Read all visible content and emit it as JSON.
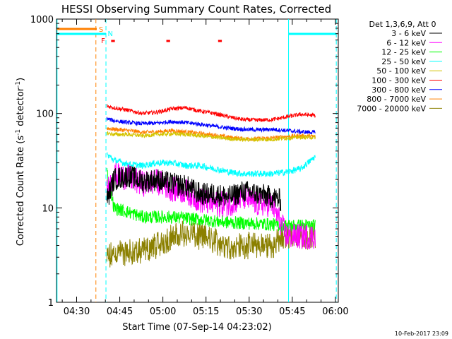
{
  "chart_data": {
    "type": "line",
    "title": "HESSI Observing Summary Count Rates, Corrected",
    "xlabel": "Start Time (07-Sep-14 04:23:02)",
    "ylabel_main": "Corrected Count Rate (s",
    "ylabel_sup1": "-1",
    "ylabel_mid": " detector",
    "ylabel_sup2": "-1",
    "ylabel_end": ")",
    "yscale": "log",
    "ylim": [
      1,
      1000
    ],
    "xlim_minutes": [
      0,
      98
    ],
    "x_ticks": [
      {
        "label": "04:30",
        "min": 7
      },
      {
        "label": "04:45",
        "min": 22
      },
      {
        "label": "05:00",
        "min": 37
      },
      {
        "label": "05:15",
        "min": 52
      },
      {
        "label": "05:30",
        "min": 67
      },
      {
        "label": "05:45",
        "min": 82
      },
      {
        "label": "06:00",
        "min": 97
      }
    ],
    "y_ticks": [
      {
        "label": "1",
        "v": 1
      },
      {
        "label": "10",
        "v": 10
      },
      {
        "label": "100",
        "v": 100
      },
      {
        "label": "1000",
        "v": 1000
      }
    ],
    "legend_header": "Det 1,3,6,9, Att 0",
    "series": [
      {
        "name": "3 - 6 keV",
        "color": "#000000",
        "x": [
          17.5,
          20,
          25,
          30,
          35,
          40,
          45,
          50,
          55,
          60,
          65,
          70,
          75,
          78
        ],
        "y": [
          12,
          20,
          22,
          19,
          20,
          18,
          17,
          14,
          14,
          13,
          15,
          14,
          13,
          12
        ]
      },
      {
        "name": "6 - 12 keV",
        "color": "#ff00ff",
        "x": [
          17.5,
          20,
          25,
          30,
          35,
          40,
          45,
          50,
          55,
          60,
          65,
          70,
          75,
          80,
          90
        ],
        "y": [
          15,
          22,
          21,
          18,
          19,
          16,
          15,
          12,
          11,
          11,
          13,
          11,
          11,
          5,
          5
        ]
      },
      {
        "name": "12 - 25 keV",
        "color": "#00ff00",
        "x": [
          17.5,
          20,
          25,
          30,
          40,
          50,
          60,
          70,
          80,
          90
        ],
        "y": [
          24,
          10,
          9,
          8,
          8,
          7.5,
          7,
          6.8,
          6.5,
          6.5
        ]
      },
      {
        "name": "25 - 50 keV",
        "color": "#00ffff",
        "x": [
          17.5,
          20,
          25,
          30,
          35,
          40,
          45,
          50,
          55,
          60,
          65,
          70,
          75,
          80,
          85,
          90
        ],
        "y": [
          37,
          32,
          29,
          28,
          30,
          30,
          28,
          28,
          26,
          24,
          23,
          23,
          23,
          24,
          26,
          35
        ]
      },
      {
        "name": "50 - 100 keV",
        "color": "#d4c400",
        "x": [
          17.5,
          20,
          25,
          30,
          35,
          40,
          45,
          50,
          55,
          60,
          65,
          70,
          75,
          80,
          85,
          90
        ],
        "y": [
          62,
          60,
          60,
          58,
          60,
          61,
          60,
          58,
          56,
          54,
          53,
          53,
          53,
          55,
          56,
          56
        ]
      },
      {
        "name": "100 - 300 keV",
        "color": "#ff0000",
        "x": [
          17.5,
          20,
          25,
          30,
          35,
          40,
          45,
          50,
          55,
          60,
          65,
          70,
          75,
          80,
          85,
          90
        ],
        "y": [
          120,
          115,
          108,
          100,
          103,
          112,
          115,
          106,
          100,
          92,
          86,
          85,
          86,
          92,
          98,
          95
        ]
      },
      {
        "name": "300 - 800 keV",
        "color": "#0000ff",
        "x": [
          17.5,
          20,
          25,
          30,
          35,
          40,
          45,
          50,
          55,
          60,
          65,
          70,
          75,
          80,
          85,
          90
        ],
        "y": [
          88,
          84,
          80,
          78,
          79,
          82,
          80,
          77,
          73,
          70,
          68,
          67,
          68,
          66,
          64,
          63
        ]
      },
      {
        "name": "800 - 7000 keV",
        "color": "#ff8000",
        "x": [
          17.5,
          20,
          25,
          30,
          35,
          40,
          45,
          50,
          55,
          60,
          65,
          70,
          75,
          80,
          85,
          90
        ],
        "y": [
          70,
          68,
          66,
          63,
          64,
          66,
          64,
          61,
          59,
          56,
          54,
          54,
          55,
          57,
          58,
          57
        ]
      },
      {
        "name": "7000 - 20000 keV",
        "color": "#8b8000",
        "x": [
          17.5,
          20,
          25,
          30,
          35,
          40,
          45,
          50,
          55,
          60,
          65,
          70,
          75,
          80,
          90
        ],
        "y": [
          3,
          3.4,
          3.4,
          3.6,
          4,
          5,
          5.5,
          5,
          4.5,
          4,
          4,
          4,
          4,
          5.2,
          5
        ]
      }
    ],
    "flags": [
      {
        "label": "S",
        "color": "#ff8000"
      },
      {
        "label": "N",
        "color": "#00ffff"
      },
      {
        "label": "F",
        "color": "#ff0000"
      }
    ],
    "timestamp": "10-Feb-2017 23:09"
  }
}
